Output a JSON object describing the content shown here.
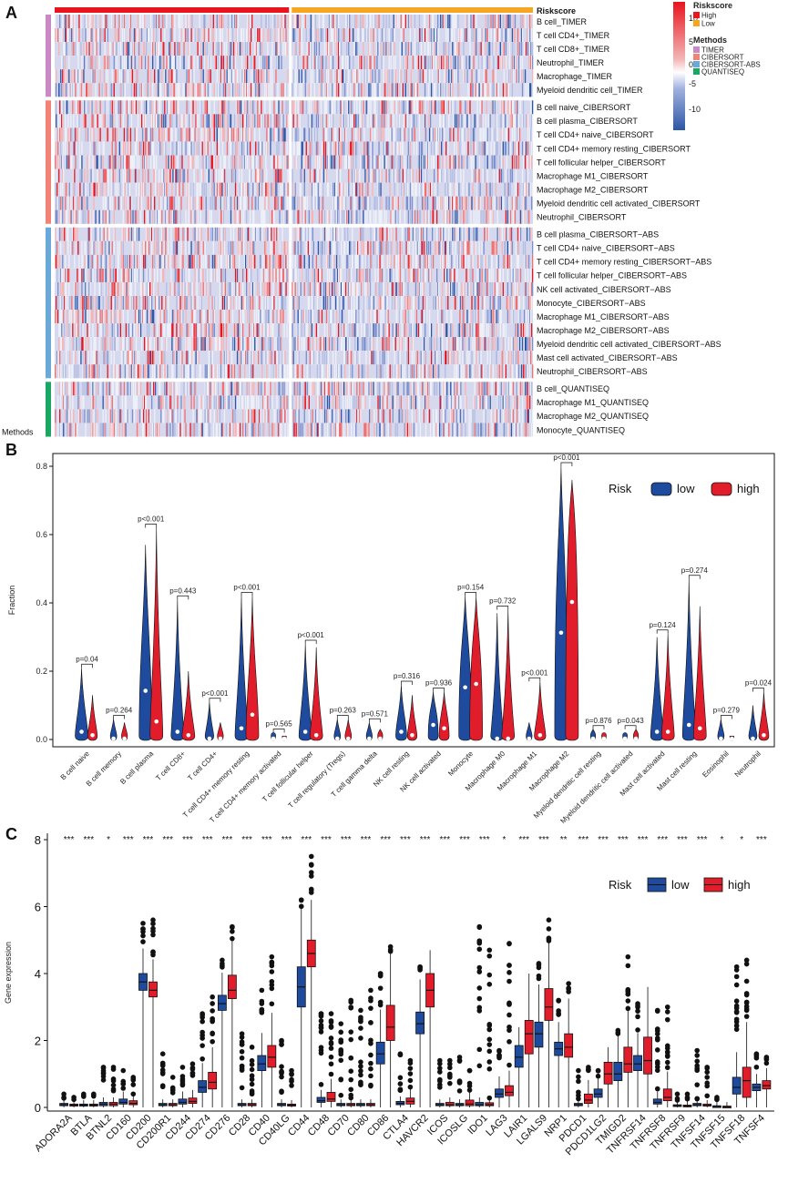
{
  "panels": {
    "a": "A",
    "b": "B",
    "c": "C"
  },
  "colors": {
    "high": "#e8141e",
    "low": "#f5a623",
    "timer": "#c889c4",
    "cibersort": "#f08277",
    "cibersort_abs": "#6aa9d8",
    "quantiseq": "#1aa663",
    "neg": "#2d56a6",
    "pos": "#e8141e",
    "box_low": "#1f4b9e",
    "box_high": "#e11d2b"
  },
  "chart_data": [
    {
      "type": "heatmap",
      "title": "",
      "annotation_label": "Riskscore",
      "side_label": "Methods",
      "legend": {
        "color_ticks": [
          10,
          5,
          0,
          -5,
          -10
        ],
        "riskscore_title": "Riskscore",
        "riskscore_items": [
          "High",
          "Low"
        ],
        "methods_title": "Methods",
        "methods_items": [
          "TIMER",
          "CIBERSORT",
          "CIBERSORT-ABS",
          "QUANTISEQ"
        ]
      },
      "groups": [
        {
          "method": "TIMER",
          "rows": [
            "B cell_TIMER",
            "T cell CD4+_TIMER",
            "T cell CD8+_TIMER",
            "Neutrophil_TIMER",
            "Macrophage_TIMER",
            "Myeloid dendritic cell_TIMER"
          ]
        },
        {
          "method": "CIBERSORT",
          "rows": [
            "B cell naive_CIBERSORT",
            "B cell plasma_CIBERSORT",
            "T cell CD4+ naive_CIBERSORT",
            "T cell CD4+ memory resting_CIBERSORT",
            "T cell follicular helper_CIBERSORT",
            "Macrophage M1_CIBERSORT",
            "Macrophage M2_CIBERSORT",
            "Myeloid dendritic cell activated_CIBERSORT",
            "Neutrophil_CIBERSORT"
          ]
        },
        {
          "method": "CIBERSORT-ABS",
          "rows": [
            "B cell plasma_CIBERSORT−ABS",
            "T cell CD4+ naive_CIBERSORT−ABS",
            "T cell CD4+ memory resting_CIBERSORT−ABS",
            "T cell follicular helper_CIBERSORT−ABS",
            "NK cell activated_CIBERSORT−ABS",
            "Monocyte_CIBERSORT−ABS",
            "Macrophage M1_CIBERSORT−ABS",
            "Macrophage M2_CIBERSORT−ABS",
            "Myeloid dendritic cell activated_CIBERSORT−ABS",
            "Mast cell activated_CIBERSORT−ABS",
            "Neutrophil_CIBERSORT−ABS"
          ]
        },
        {
          "method": "QUANTISEQ",
          "rows": [
            "B cell_QUANTISEQ",
            "Macrophage M1_QUANTISEQ",
            "Macrophage M2_QUANTISEQ",
            "Monocyte_QUANTISEQ"
          ]
        }
      ],
      "column_split": {
        "High": 0.49,
        "Low": 0.51
      }
    },
    {
      "type": "violin",
      "ylabel": "Fraction",
      "ylim": [
        0,
        0.8
      ],
      "yticks": [
        "0.0",
        "0.2",
        "0.4",
        "0.6",
        "0.8"
      ],
      "legend_title": "Risk",
      "legend_items": [
        "low",
        "high"
      ],
      "categories": [
        "B cell naive",
        "B cell memory",
        "B cell plasma",
        "T cell CD8+",
        "T cell CD4+",
        "T cell CD4+ memory resting",
        "T cell CD4+ memory activated",
        "T cell follicular helper",
        "T cell regulatory (Tregs)",
        "T cell gamma delta",
        "NK cell resting",
        "NK cell activated",
        "Monocyte",
        "Macrophage M0",
        "Macrophage M1",
        "Macrophage M2",
        "Myeloid dendritic cell resting",
        "Myeloid dendritic cell activated",
        "Mast cell activated",
        "Mast cell resting",
        "Eosinophil",
        "Neutrophil"
      ],
      "pvalues": [
        "p=0.04",
        "p=0.264",
        "p<0.001",
        "p=0.443",
        "p<0.001",
        "p<0.001",
        "p=0.565",
        "p<0.001",
        "p=0.263",
        "p=0.571",
        "p=0.316",
        "p=0.936",
        "p=0.154",
        "p=0.732",
        "p<0.001",
        "p<0.001",
        "p=0.876",
        "p=0.043",
        "p=0.124",
        "p=0.274",
        "p=0.279",
        "p=0.024"
      ],
      "series": [
        {
          "name": "low",
          "max": [
            0.21,
            0.06,
            0.57,
            0.41,
            0.11,
            0.42,
            0.02,
            0.28,
            0.06,
            0.05,
            0.16,
            0.14,
            0.42,
            0.37,
            0.05,
            0.8,
            0.03,
            0.02,
            0.3,
            0.47,
            0.06,
            0.1
          ],
          "median": [
            0.02,
            0.0,
            0.14,
            0.02,
            0.0,
            0.03,
            0.0,
            0.02,
            0.0,
            0.0,
            0.02,
            0.04,
            0.15,
            0.0,
            0.0,
            0.31,
            0.0,
            0.0,
            0.02,
            0.04,
            0.0,
            0.0
          ]
        },
        {
          "name": "high",
          "max": [
            0.13,
            0.05,
            0.62,
            0.2,
            0.05,
            0.42,
            0.01,
            0.27,
            0.06,
            0.03,
            0.13,
            0.14,
            0.42,
            0.38,
            0.17,
            0.76,
            0.02,
            0.03,
            0.31,
            0.39,
            0.01,
            0.14
          ],
          "median": [
            0.01,
            0.0,
            0.05,
            0.01,
            0.0,
            0.07,
            0.0,
            0.01,
            0.0,
            0.0,
            0.01,
            0.03,
            0.16,
            0.0,
            0.01,
            0.4,
            0.0,
            0.0,
            0.02,
            0.03,
            0.0,
            0.01
          ]
        }
      ]
    },
    {
      "type": "box",
      "ylabel": "Gene expression",
      "ylim": [
        0,
        8
      ],
      "yticks": [
        "0",
        "2",
        "4",
        "6",
        "8"
      ],
      "legend_title": "Risk",
      "legend_items": [
        "low",
        "high"
      ],
      "categories": [
        "ADORA2A",
        "BTLA",
        "BTNL2",
        "CD160",
        "CD200",
        "CD200R1",
        "CD244",
        "CD274",
        "CD276",
        "CD28",
        "CD40",
        "CD40LG",
        "CD44",
        "CD48",
        "CD70",
        "CD80",
        "CD86",
        "CTLA4",
        "HAVCR2",
        "ICOS",
        "ICOSLG",
        "IDO1",
        "LAG3",
        "LAIR1",
        "LGALS9",
        "NRP1",
        "PDCD1",
        "PDCD1LG2",
        "TMIGD2",
        "TNFRSF14",
        "TNFRSF8",
        "TNFRSF9",
        "TNFSF14",
        "TNFSF15",
        "TNFSF18",
        "TNFSF4"
      ],
      "significance": [
        "***",
        "***",
        "*",
        "***",
        "***",
        "***",
        "***",
        "***",
        "***",
        "***",
        "***",
        "***",
        "***",
        "***",
        "***",
        "***",
        "***",
        "***",
        "***",
        "***",
        "***",
        "***",
        "*",
        "***",
        "***",
        "**",
        "***",
        "***",
        "***",
        "***",
        "***",
        "***",
        "***",
        "*",
        "*",
        "***"
      ],
      "series": [
        {
          "name": "low",
          "q1": [
            0.05,
            0.04,
            0.05,
            0.1,
            3.5,
            0.05,
            0.1,
            0.45,
            2.9,
            0.05,
            1.1,
            0.05,
            3.0,
            0.15,
            0.05,
            0.05,
            1.3,
            0.08,
            2.2,
            0.05,
            0.05,
            0.05,
            0.3,
            1.2,
            1.8,
            1.55,
            0.05,
            0.3,
            0.8,
            1.1,
            0.1,
            0.03,
            0.05,
            0.02,
            0.4,
            0.5
          ],
          "median": [
            0.08,
            0.07,
            0.1,
            0.15,
            3.75,
            0.08,
            0.15,
            0.6,
            3.1,
            0.08,
            1.3,
            0.08,
            3.6,
            0.2,
            0.08,
            0.08,
            1.6,
            0.12,
            2.5,
            0.08,
            0.08,
            0.08,
            0.4,
            1.5,
            2.2,
            1.75,
            0.08,
            0.4,
            1.0,
            1.3,
            0.15,
            0.05,
            0.08,
            0.03,
            0.6,
            0.6
          ],
          "q3": [
            0.12,
            0.1,
            0.15,
            0.25,
            4.0,
            0.12,
            0.25,
            0.8,
            3.35,
            0.12,
            1.55,
            0.12,
            4.2,
            0.3,
            0.12,
            0.12,
            1.95,
            0.18,
            2.85,
            0.12,
            0.12,
            0.15,
            0.55,
            1.85,
            2.55,
            1.95,
            0.12,
            0.55,
            1.35,
            1.55,
            0.25,
            0.08,
            0.12,
            0.05,
            0.9,
            0.7
          ],
          "max": [
            0.4,
            0.4,
            1.2,
            1.1,
            5.5,
            1.6,
            1.2,
            2.8,
            4.4,
            2.2,
            3.5,
            2.0,
            6.2,
            2.8,
            2.5,
            2.9,
            4.0,
            1.6,
            4.2,
            1.4,
            1.5,
            5.4,
            1.7,
            2.4,
            4.3,
            3.2,
            1.1,
            1.1,
            2.3,
            3.1,
            2.9,
            0.4,
            1.7,
            0.3,
            4.2,
            1.6
          ]
        },
        {
          "name": "high",
          "q1": [
            0.04,
            0.04,
            0.05,
            0.08,
            3.3,
            0.05,
            0.12,
            0.55,
            3.25,
            0.05,
            1.2,
            0.04,
            4.2,
            0.18,
            0.05,
            0.05,
            2.0,
            0.1,
            3.0,
            0.05,
            0.05,
            0.05,
            0.35,
            1.6,
            2.6,
            1.5,
            0.12,
            0.7,
            1.05,
            1.0,
            0.2,
            0.02,
            0.04,
            0.01,
            0.3,
            0.55
          ],
          "median": [
            0.07,
            0.07,
            0.1,
            0.12,
            3.5,
            0.08,
            0.18,
            0.75,
            3.5,
            0.08,
            1.5,
            0.07,
            4.6,
            0.25,
            0.08,
            0.08,
            2.4,
            0.18,
            3.5,
            0.08,
            0.1,
            0.08,
            0.45,
            2.2,
            3.0,
            1.8,
            0.22,
            1.0,
            1.3,
            1.4,
            0.3,
            0.04,
            0.06,
            0.02,
            0.8,
            0.65
          ],
          "q3": [
            0.1,
            0.1,
            0.15,
            0.2,
            3.75,
            0.12,
            0.28,
            1.05,
            3.95,
            0.12,
            1.85,
            0.1,
            5.0,
            0.45,
            0.12,
            0.12,
            3.05,
            0.28,
            4.0,
            0.15,
            0.22,
            0.14,
            0.65,
            2.6,
            3.55,
            2.2,
            0.4,
            1.35,
            1.8,
            2.1,
            0.55,
            0.07,
            0.1,
            0.04,
            1.2,
            0.8
          ],
          "max": [
            0.3,
            0.4,
            1.2,
            0.9,
            5.6,
            0.9,
            1.3,
            3.3,
            5.4,
            1.8,
            4.5,
            1.1,
            7.5,
            2.8,
            3.2,
            3.5,
            4.8,
            1.4,
            4.7,
            1.4,
            1.1,
            4.7,
            4.9,
            4.0,
            5.6,
            3.7,
            1.2,
            1.8,
            4.5,
            3.6,
            3.0,
            0.4,
            1.2,
            0.2,
            4.4,
            1.5
          ]
        }
      ]
    }
  ]
}
